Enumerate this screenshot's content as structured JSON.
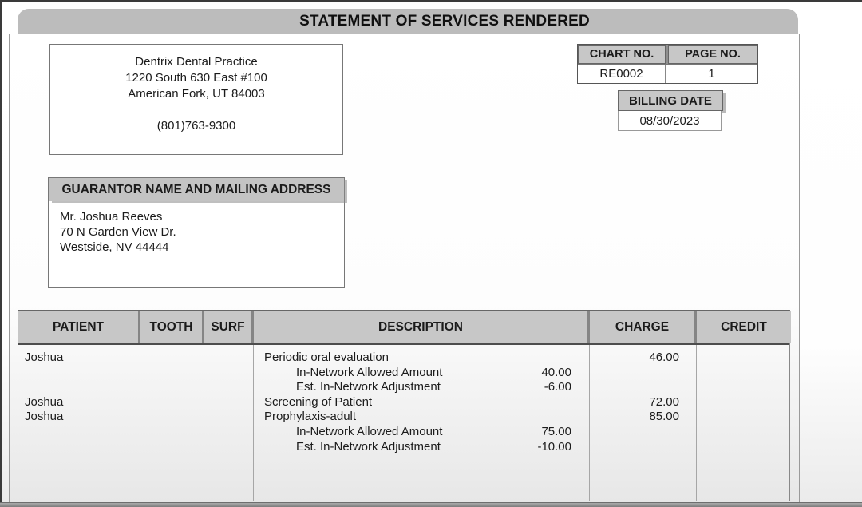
{
  "title": "STATEMENT OF SERVICES RENDERED",
  "practice": {
    "name": "Dentrix Dental Practice",
    "address_line1": "1220 South 630 East #100",
    "address_line2": "American Fork, UT 84003",
    "phone": "(801)763-9300"
  },
  "chart_box": {
    "chart_label": "CHART NO.",
    "chart_value": "RE0002",
    "page_label": "PAGE NO.",
    "page_value": "1"
  },
  "billing_box": {
    "label": "BILLING DATE",
    "value": "08/30/2023"
  },
  "guarantor_box": {
    "header": "GUARANTOR NAME AND MAILING ADDRESS",
    "name": "Mr. Joshua Reeves",
    "address_line1": "70 N Garden View Dr.",
    "address_line2": "Westside, NV 44444"
  },
  "services_table": {
    "headers": [
      "PATIENT",
      "TOOTH",
      "SURF",
      "DESCRIPTION",
      "CHARGE",
      "CREDIT"
    ],
    "rows": [
      {
        "type": "service",
        "patient": "Joshua",
        "tooth": "",
        "surf": "",
        "description": "Periodic oral evaluation",
        "amount": "",
        "charge": "46.00",
        "credit": ""
      },
      {
        "type": "detail",
        "patient": "",
        "tooth": "",
        "surf": "",
        "description": "In-Network Allowed Amount",
        "amount": "40.00",
        "charge": "",
        "credit": ""
      },
      {
        "type": "detail",
        "patient": "",
        "tooth": "",
        "surf": "",
        "description": "Est. In-Network Adjustment",
        "amount": "-6.00",
        "charge": "",
        "credit": ""
      },
      {
        "type": "service",
        "patient": "Joshua",
        "tooth": "",
        "surf": "",
        "description": "Screening of Patient",
        "amount": "",
        "charge": "72.00",
        "credit": ""
      },
      {
        "type": "service",
        "patient": "Joshua",
        "tooth": "",
        "surf": "",
        "description": "Prophylaxis-adult",
        "amount": "",
        "charge": "85.00",
        "credit": ""
      },
      {
        "type": "detail",
        "patient": "",
        "tooth": "",
        "surf": "",
        "description": "In-Network Allowed Amount",
        "amount": "75.00",
        "charge": "",
        "credit": ""
      },
      {
        "type": "detail",
        "patient": "",
        "tooth": "",
        "surf": "",
        "description": "Est. In-Network Adjustment",
        "amount": "-10.00",
        "charge": "",
        "credit": ""
      }
    ]
  },
  "colors": {
    "titlebar_gray": "#bcbcbc",
    "label_gray": "#c7c7c7",
    "bottom_bar_gray": "#8f8f8f",
    "frame_dark": "#3a3a3a"
  }
}
